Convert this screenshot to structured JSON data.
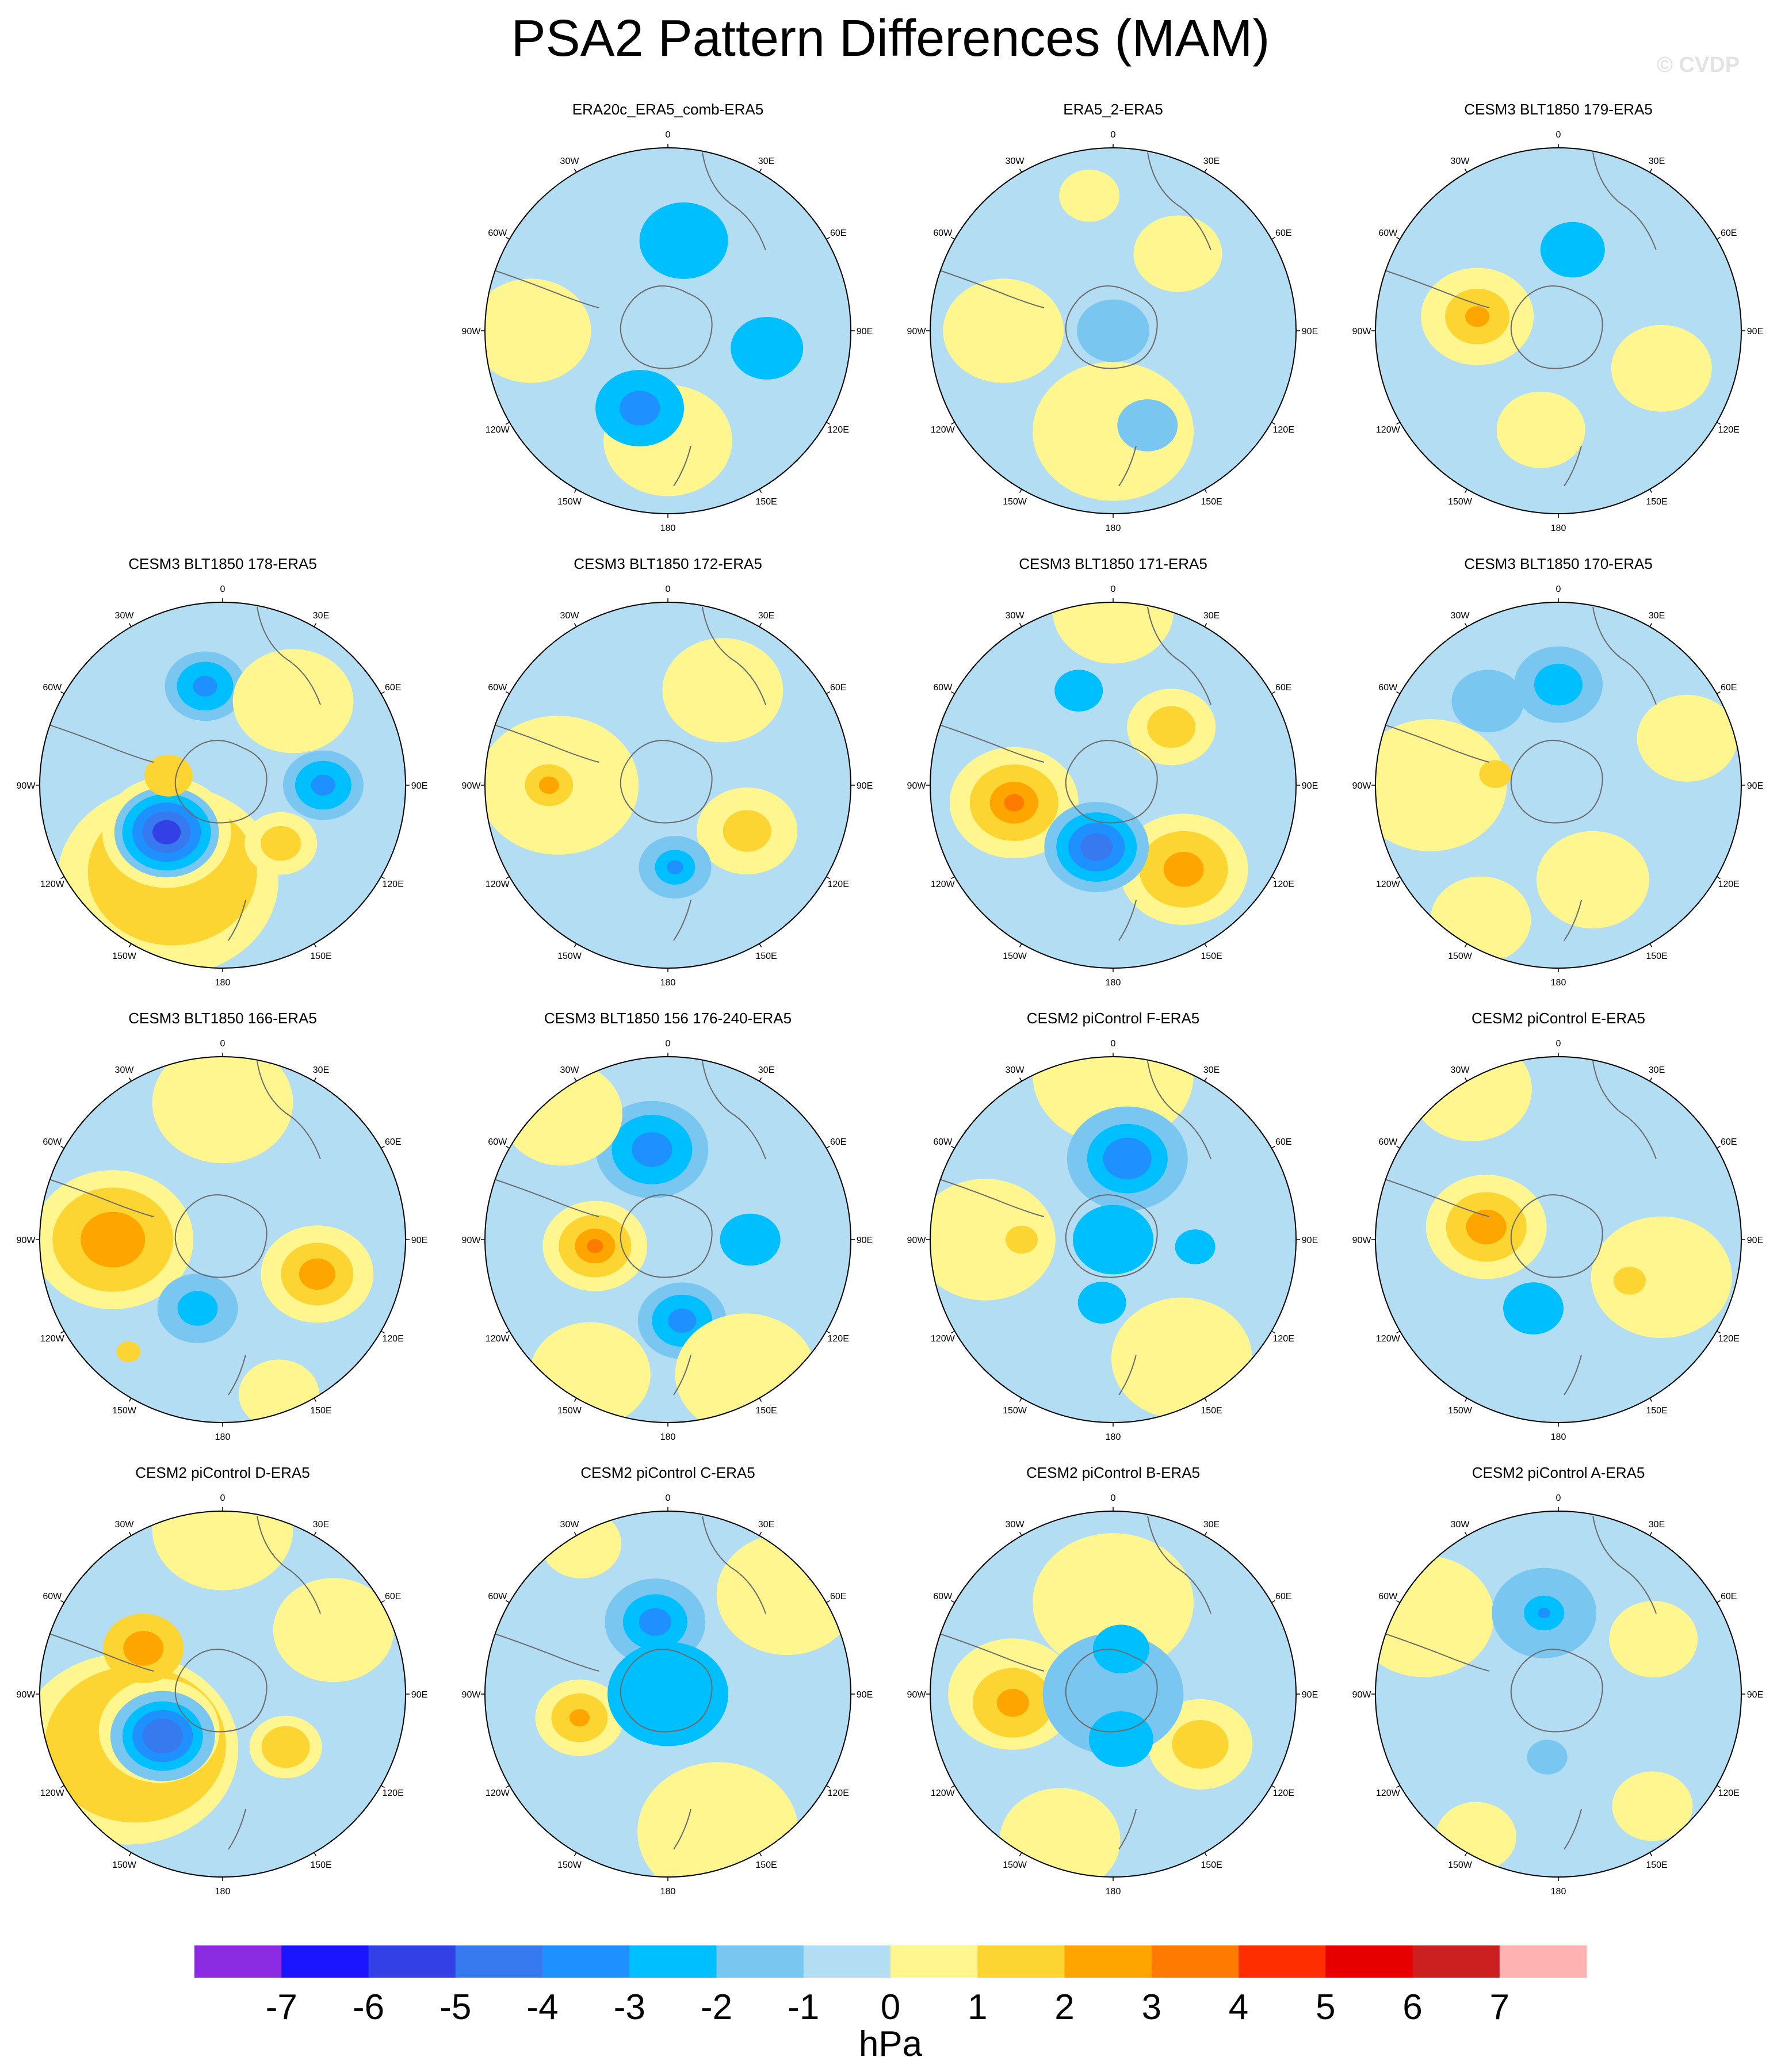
{
  "title": "PSA2 Pattern Differences (MAM)",
  "watermark": "© CVDP",
  "units": "hPa",
  "longitude_labels": [
    "0",
    "30E",
    "60E",
    "90E",
    "120E",
    "150E",
    "180",
    "150W",
    "120W",
    "90W",
    "60W",
    "30W"
  ],
  "colorbar": {
    "ticks": [
      "-7",
      "-6",
      "-5",
      "-4",
      "-3",
      "-2",
      "-1",
      "0",
      "1",
      "2",
      "3",
      "4",
      "5",
      "6",
      "7"
    ],
    "colors": [
      "#8b2be2",
      "#1a14ff",
      "#3340e6",
      "#3779ee",
      "#1e90ff",
      "#00bfff",
      "#79c7f0",
      "#b3ddf2",
      "#fff690",
      "#fcd532",
      "#ffa500",
      "#ff7a00",
      "#ff2e00",
      "#e60000",
      "#cc1f1f",
      "#ffb2b2"
    ]
  },
  "land_color": "#b3ddf2",
  "panels": [
    {
      "title": "ERA20c_ERA5_comb-ERA5",
      "features": [
        {
          "lon": 180,
          "r": 0.6,
          "radius": 0.32,
          "level": 1
        },
        {
          "lon": -90,
          "r": 0.75,
          "radius": 0.3,
          "level": 1
        },
        {
          "lon": 10,
          "r": 0.5,
          "radius": 0.22,
          "level": -2
        },
        {
          "lon": 100,
          "r": 0.55,
          "radius": 0.18,
          "level": -2
        },
        {
          "lon": -160,
          "r": 0.45,
          "radius": 0.22,
          "level": -2
        },
        {
          "lon": -160,
          "r": 0.45,
          "radius": 0.1,
          "level": -3
        }
      ]
    },
    {
      "title": "ERA5_2-ERA5",
      "features": [
        {
          "lon": 180,
          "r": 0.55,
          "radius": 0.4,
          "level": 1
        },
        {
          "lon": -90,
          "r": 0.6,
          "radius": 0.3,
          "level": 1
        },
        {
          "lon": 40,
          "r": 0.55,
          "radius": 0.22,
          "level": 1
        },
        {
          "lon": -10,
          "r": 0.75,
          "radius": 0.15,
          "level": 1
        },
        {
          "lon": 0,
          "r": 0,
          "radius": 0.18,
          "level": -1
        },
        {
          "lon": 160,
          "r": 0.55,
          "radius": 0.15,
          "level": -1
        }
      ]
    },
    {
      "title": "CESM3 BLT1850 179-ERA5",
      "features": [
        {
          "lon": -80,
          "r": 0.45,
          "radius": 0.28,
          "level": 1
        },
        {
          "lon": -80,
          "r": 0.45,
          "radius": 0.16,
          "level": 2
        },
        {
          "lon": -80,
          "r": 0.45,
          "radius": 0.06,
          "level": 3
        },
        {
          "lon": 110,
          "r": 0.6,
          "radius": 0.25,
          "level": 1
        },
        {
          "lon": -170,
          "r": 0.55,
          "radius": 0.22,
          "level": 1
        },
        {
          "lon": 10,
          "r": 0.45,
          "radius": 0.16,
          "level": -2
        }
      ]
    },
    {
      "title": "CESM3 BLT1850 178-ERA5",
      "features": [
        {
          "lon": -150,
          "r": 0.6,
          "radius": 0.55,
          "level": 1
        },
        {
          "lon": -150,
          "r": 0.55,
          "radius": 0.42,
          "level": 2
        },
        {
          "lon": -130,
          "r": 0.4,
          "radius": 0.32,
          "level": 1
        },
        {
          "lon": -130,
          "r": 0.4,
          "radius": 0.26,
          "level": -1
        },
        {
          "lon": -130,
          "r": 0.4,
          "radius": 0.22,
          "level": -2
        },
        {
          "lon": -130,
          "r": 0.4,
          "radius": 0.17,
          "level": -3
        },
        {
          "lon": -130,
          "r": 0.4,
          "radius": 0.12,
          "level": -4
        },
        {
          "lon": -130,
          "r": 0.4,
          "radius": 0.07,
          "level": -5
        },
        {
          "lon": 135,
          "r": 0.45,
          "radius": 0.18,
          "level": 1
        },
        {
          "lon": 135,
          "r": 0.45,
          "radius": 0.1,
          "level": 2
        },
        {
          "lon": 90,
          "r": 0.55,
          "radius": 0.2,
          "level": -1
        },
        {
          "lon": 90,
          "r": 0.55,
          "radius": 0.14,
          "level": -2
        },
        {
          "lon": 90,
          "r": 0.55,
          "radius": 0.06,
          "level": -3
        },
        {
          "lon": -10,
          "r": 0.55,
          "radius": 0.2,
          "level": -1
        },
        {
          "lon": -10,
          "r": 0.55,
          "radius": 0.14,
          "level": -2
        },
        {
          "lon": -10,
          "r": 0.55,
          "radius": 0.06,
          "level": -3
        },
        {
          "lon": 40,
          "r": 0.6,
          "radius": 0.3,
          "level": 1
        },
        {
          "lon": -80,
          "r": 0.3,
          "radius": 0.12,
          "level": 2
        }
      ]
    },
    {
      "title": "CESM3 BLT1850 172-ERA5",
      "features": [
        {
          "lon": -90,
          "r": 0.6,
          "radius": 0.4,
          "level": 1
        },
        {
          "lon": -90,
          "r": 0.65,
          "radius": 0.2,
          "level": 1
        },
        {
          "lon": -90,
          "r": 0.65,
          "radius": 0.12,
          "level": 2
        },
        {
          "lon": -90,
          "r": 0.65,
          "radius": 0.05,
          "level": 3
        },
        {
          "lon": 120,
          "r": 0.5,
          "radius": 0.25,
          "level": 1
        },
        {
          "lon": 120,
          "r": 0.5,
          "radius": 0.12,
          "level": 2
        },
        {
          "lon": 30,
          "r": 0.6,
          "radius": 0.3,
          "level": 1
        },
        {
          "lon": 175,
          "r": 0.45,
          "radius": 0.18,
          "level": -1
        },
        {
          "lon": 175,
          "r": 0.45,
          "radius": 0.1,
          "level": -2
        },
        {
          "lon": 175,
          "r": 0.45,
          "radius": 0.04,
          "level": -3
        }
      ]
    },
    {
      "title": "CESM3 BLT1850 171-ERA5",
      "features": [
        {
          "lon": -100,
          "r": 0.55,
          "radius": 0.32,
          "level": 1
        },
        {
          "lon": -100,
          "r": 0.55,
          "radius": 0.22,
          "level": 2
        },
        {
          "lon": -100,
          "r": 0.55,
          "radius": 0.12,
          "level": 3
        },
        {
          "lon": -100,
          "r": 0.55,
          "radius": 0.05,
          "level": 4
        },
        {
          "lon": 140,
          "r": 0.6,
          "radius": 0.32,
          "level": 1
        },
        {
          "lon": 140,
          "r": 0.6,
          "radius": 0.22,
          "level": 2
        },
        {
          "lon": 140,
          "r": 0.6,
          "radius": 0.1,
          "level": 3
        },
        {
          "lon": -165,
          "r": 0.35,
          "radius": 0.26,
          "level": -1
        },
        {
          "lon": -165,
          "r": 0.35,
          "radius": 0.2,
          "level": -2
        },
        {
          "lon": -165,
          "r": 0.35,
          "radius": 0.14,
          "level": -3
        },
        {
          "lon": -165,
          "r": 0.35,
          "radius": 0.08,
          "level": -4
        },
        {
          "lon": 45,
          "r": 0.45,
          "radius": 0.22,
          "level": 1
        },
        {
          "lon": 45,
          "r": 0.45,
          "radius": 0.12,
          "level": 2
        },
        {
          "lon": -20,
          "r": 0.55,
          "radius": 0.12,
          "level": -2
        },
        {
          "lon": 0,
          "r": 0.95,
          "radius": 0.3,
          "level": 1
        }
      ]
    },
    {
      "title": "CESM3 BLT1850 170-ERA5",
      "features": [
        {
          "lon": -90,
          "r": 0.7,
          "radius": 0.38,
          "level": 1
        },
        {
          "lon": -80,
          "r": 0.35,
          "radius": 0.08,
          "level": 2
        },
        {
          "lon": 70,
          "r": 0.75,
          "radius": 0.25,
          "level": 1
        },
        {
          "lon": 160,
          "r": 0.55,
          "radius": 0.28,
          "level": 1
        },
        {
          "lon": -150,
          "r": 0.85,
          "radius": 0.25,
          "level": 1
        },
        {
          "lon": 0,
          "r": 0.55,
          "radius": 0.22,
          "level": -1
        },
        {
          "lon": 0,
          "r": 0.55,
          "radius": 0.12,
          "level": -2
        },
        {
          "lon": -40,
          "r": 0.6,
          "radius": 0.18,
          "level": -1
        }
      ]
    },
    {
      "title": "CESM3 BLT1850 166-ERA5",
      "features": [
        {
          "lon": -90,
          "r": 0.6,
          "radius": 0.4,
          "level": 1
        },
        {
          "lon": -90,
          "r": 0.6,
          "radius": 0.3,
          "level": 2
        },
        {
          "lon": -90,
          "r": 0.6,
          "radius": 0.16,
          "level": 3
        },
        {
          "lon": 110,
          "r": 0.55,
          "radius": 0.28,
          "level": 1
        },
        {
          "lon": 110,
          "r": 0.55,
          "radius": 0.18,
          "level": 2
        },
        {
          "lon": 110,
          "r": 0.55,
          "radius": 0.09,
          "level": 3
        },
        {
          "lon": -160,
          "r": 0.4,
          "radius": 0.2,
          "level": -1
        },
        {
          "lon": -160,
          "r": 0.4,
          "radius": 0.1,
          "level": -2
        },
        {
          "lon": 0,
          "r": 0.75,
          "radius": 0.35,
          "level": 1
        },
        {
          "lon": -140,
          "r": 0.8,
          "radius": 0.06,
          "level": 2
        },
        {
          "lon": 160,
          "r": 0.9,
          "radius": 0.2,
          "level": 1
        }
      ]
    },
    {
      "title": "CESM3 BLT1850 156 176-240-ERA5",
      "features": [
        {
          "lon": -95,
          "r": 0.4,
          "radius": 0.26,
          "level": 1
        },
        {
          "lon": -95,
          "r": 0.4,
          "radius": 0.18,
          "level": 2
        },
        {
          "lon": -95,
          "r": 0.4,
          "radius": 0.1,
          "level": 3
        },
        {
          "lon": -95,
          "r": 0.4,
          "radius": 0.04,
          "level": 4
        },
        {
          "lon": -10,
          "r": 0.5,
          "radius": 0.28,
          "level": -1
        },
        {
          "lon": -10,
          "r": 0.5,
          "radius": 0.2,
          "level": -2
        },
        {
          "lon": -10,
          "r": 0.5,
          "radius": 0.1,
          "level": -3
        },
        {
          "lon": 170,
          "r": 0.45,
          "radius": 0.22,
          "level": -1
        },
        {
          "lon": 170,
          "r": 0.45,
          "radius": 0.15,
          "level": -2
        },
        {
          "lon": 170,
          "r": 0.45,
          "radius": 0.07,
          "level": -3
        },
        {
          "lon": 90,
          "r": 0.45,
          "radius": 0.15,
          "level": -2
        },
        {
          "lon": 150,
          "r": 0.85,
          "radius": 0.35,
          "level": 1
        },
        {
          "lon": -40,
          "r": 0.9,
          "radius": 0.3,
          "level": 1
        },
        {
          "lon": -150,
          "r": 0.85,
          "radius": 0.3,
          "level": 1
        }
      ]
    },
    {
      "title": "CESM2 piControl F-ERA5",
      "features": [
        {
          "lon": 0,
          "r": 0.9,
          "radius": 0.4,
          "level": 1
        },
        {
          "lon": -90,
          "r": 0.7,
          "radius": 0.35,
          "level": 1
        },
        {
          "lon": -90,
          "r": 0.5,
          "radius": 0.08,
          "level": 2
        },
        {
          "lon": 150,
          "r": 0.75,
          "radius": 0.35,
          "level": 1
        },
        {
          "lon": 10,
          "r": 0.45,
          "radius": 0.3,
          "level": -1
        },
        {
          "lon": 10,
          "r": 0.45,
          "radius": 0.2,
          "level": -2
        },
        {
          "lon": 10,
          "r": 0.45,
          "radius": 0.12,
          "level": -3
        },
        {
          "lon": 95,
          "r": 0.45,
          "radius": 0.1,
          "level": -2
        },
        {
          "lon": -170,
          "r": 0.35,
          "radius": 0.12,
          "level": -2
        },
        {
          "lon": 0,
          "r": 0,
          "radius": 0.2,
          "level": -2
        }
      ]
    },
    {
      "title": "CESM2 piControl E-ERA5",
      "features": [
        {
          "lon": -80,
          "r": 0.4,
          "radius": 0.3,
          "level": 1
        },
        {
          "lon": -80,
          "r": 0.4,
          "radius": 0.2,
          "level": 2
        },
        {
          "lon": -80,
          "r": 0.4,
          "radius": 0.1,
          "level": 3
        },
        {
          "lon": -30,
          "r": 0.95,
          "radius": 0.3,
          "level": 1
        },
        {
          "lon": 110,
          "r": 0.6,
          "radius": 0.35,
          "level": 1
        },
        {
          "lon": 120,
          "r": 0.45,
          "radius": 0.08,
          "level": 2
        },
        {
          "lon": -160,
          "r": 0.4,
          "radius": 0.15,
          "level": -2
        }
      ]
    },
    {
      "title": "CESM2 piControl D-ERA5",
      "features": [
        {
          "lon": -120,
          "r": 0.6,
          "radius": 0.55,
          "level": 1
        },
        {
          "lon": -120,
          "r": 0.55,
          "radius": 0.45,
          "level": 2
        },
        {
          "lon": -120,
          "r": 0.4,
          "radius": 0.3,
          "level": 1
        },
        {
          "lon": -125,
          "r": 0.4,
          "radius": 0.26,
          "level": -1
        },
        {
          "lon": -125,
          "r": 0.4,
          "radius": 0.2,
          "level": -2
        },
        {
          "lon": -125,
          "r": 0.4,
          "radius": 0.15,
          "level": -3
        },
        {
          "lon": -125,
          "r": 0.4,
          "radius": 0.1,
          "level": -4
        },
        {
          "lon": -60,
          "r": 0.5,
          "radius": 0.2,
          "level": 2
        },
        {
          "lon": -60,
          "r": 0.5,
          "radius": 0.1,
          "level": 3
        },
        {
          "lon": 130,
          "r": 0.45,
          "radius": 0.18,
          "level": 1
        },
        {
          "lon": 130,
          "r": 0.45,
          "radius": 0.12,
          "level": 2
        },
        {
          "lon": 60,
          "r": 0.7,
          "radius": 0.3,
          "level": 1
        },
        {
          "lon": 0,
          "r": 0.9,
          "radius": 0.35,
          "level": 1
        }
      ]
    },
    {
      "title": "CESM2 piControl C-ERA5",
      "features": [
        {
          "lon": -105,
          "r": 0.5,
          "radius": 0.22,
          "level": 1
        },
        {
          "lon": -105,
          "r": 0.5,
          "radius": 0.14,
          "level": 2
        },
        {
          "lon": -105,
          "r": 0.5,
          "radius": 0.05,
          "level": 3
        },
        {
          "lon": -10,
          "r": 0.4,
          "radius": 0.25,
          "level": -1
        },
        {
          "lon": -10,
          "r": 0.4,
          "radius": 0.16,
          "level": -2
        },
        {
          "lon": -10,
          "r": 0.4,
          "radius": 0.08,
          "level": -3
        },
        {
          "lon": 0,
          "r": 0,
          "radius": 0.3,
          "level": -2
        },
        {
          "lon": 50,
          "r": 0.85,
          "radius": 0.35,
          "level": 1
        },
        {
          "lon": 160,
          "r": 0.8,
          "radius": 0.4,
          "level": 1
        },
        {
          "lon": -30,
          "r": 0.95,
          "radius": 0.2,
          "level": 1
        }
      ]
    },
    {
      "title": "CESM2 piControl B-ERA5",
      "features": [
        {
          "lon": -90,
          "r": 0.55,
          "radius": 0.32,
          "level": 1
        },
        {
          "lon": -95,
          "r": 0.55,
          "radius": 0.2,
          "level": 2
        },
        {
          "lon": -95,
          "r": 0.55,
          "radius": 0.08,
          "level": 3
        },
        {
          "lon": 120,
          "r": 0.55,
          "radius": 0.26,
          "level": 1
        },
        {
          "lon": 120,
          "r": 0.55,
          "radius": 0.14,
          "level": 2
        },
        {
          "lon": 0,
          "r": 0.5,
          "radius": 0.4,
          "level": 1
        },
        {
          "lon": 0,
          "r": 0,
          "radius": 0.35,
          "level": -1
        },
        {
          "lon": 170,
          "r": 0.25,
          "radius": 0.16,
          "level": -2
        },
        {
          "lon": 10,
          "r": 0.25,
          "radius": 0.14,
          "level": -2
        },
        {
          "lon": -160,
          "r": 0.85,
          "radius": 0.3,
          "level": 1
        }
      ]
    },
    {
      "title": "CESM2 piControl A-ERA5",
      "features": [
        {
          "lon": -60,
          "r": 0.85,
          "radius": 0.35,
          "level": 1
        },
        {
          "lon": 60,
          "r": 0.6,
          "radius": 0.22,
          "level": 1
        },
        {
          "lon": 140,
          "r": 0.8,
          "radius": 0.2,
          "level": 1
        },
        {
          "lon": -150,
          "r": 0.9,
          "radius": 0.2,
          "level": 1
        },
        {
          "lon": -10,
          "r": 0.45,
          "radius": 0.26,
          "level": -1
        },
        {
          "lon": -10,
          "r": 0.45,
          "radius": 0.1,
          "level": -2
        },
        {
          "lon": -10,
          "r": 0.45,
          "radius": 0.03,
          "level": -3
        },
        {
          "lon": -170,
          "r": 0.35,
          "radius": 0.1,
          "level": -1
        }
      ]
    }
  ]
}
